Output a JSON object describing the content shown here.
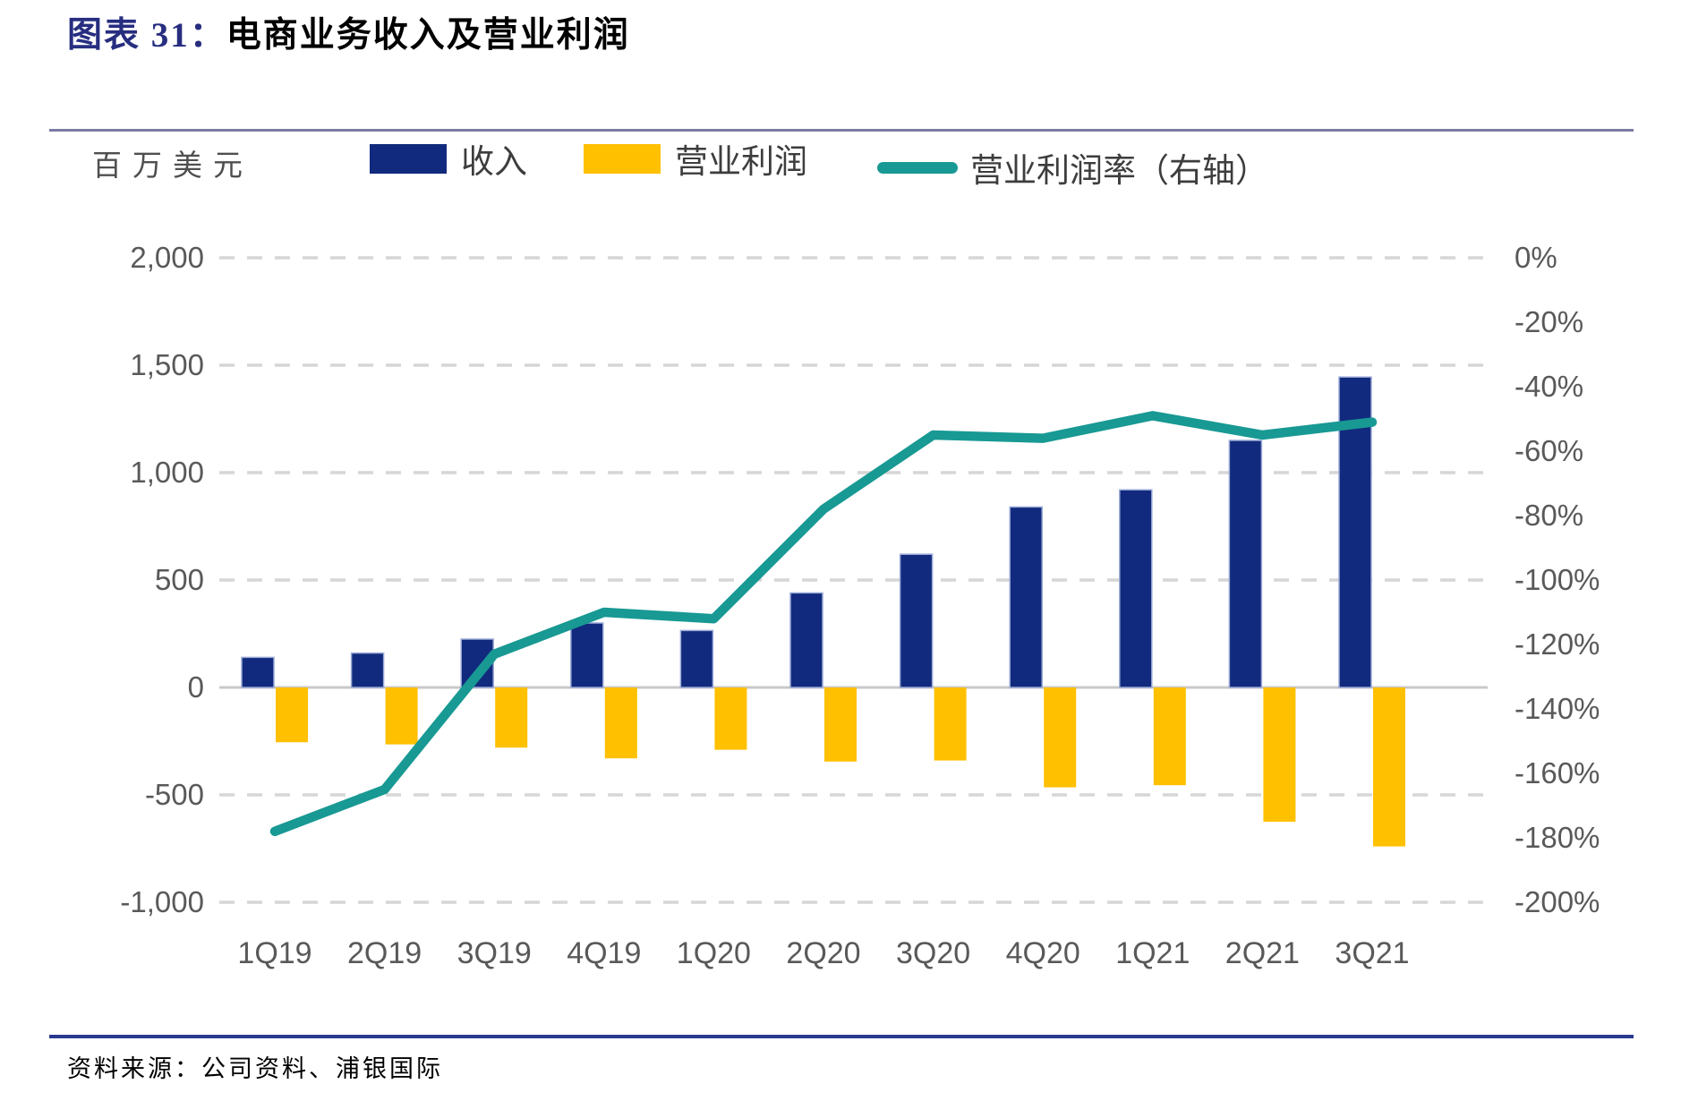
{
  "header": {
    "title_prefix": "图表 31：",
    "title_text": "电商业务收入及营业利润"
  },
  "unit_label": "百万美元",
  "legend": [
    {
      "label": "收入",
      "type": "bar",
      "color": "#112a7d"
    },
    {
      "label": "营业利润",
      "type": "bar",
      "color": "#ffc000"
    },
    {
      "label": "营业利润率（右轴）",
      "type": "line",
      "color": "#189993"
    }
  ],
  "footer": {
    "source_text": "资料来源：公司资料、浦银国际"
  },
  "colors": {
    "revenue_bar": "#112a7d",
    "revenue_bar_edge": "#9aa9d6",
    "profit_bar": "#ffc000",
    "margin_line": "#189993",
    "gridline": "#d6d6d6",
    "zero_line": "#c9c9c9",
    "axis_text": "#595959",
    "divider_top": "#7c7aa6",
    "divider_bottom": "#2b3990",
    "title_accent": "#272e80"
  },
  "chart_data": {
    "type": "bar+line",
    "categories": [
      "1Q19",
      "2Q19",
      "3Q19",
      "4Q19",
      "1Q20",
      "2Q20",
      "3Q20",
      "4Q20",
      "1Q21",
      "2Q21",
      "3Q21"
    ],
    "series": [
      {
        "name": "收入",
        "type": "bar",
        "axis": "left",
        "values": [
          140,
          160,
          225,
          300,
          265,
          440,
          620,
          840,
          920,
          1150,
          1445
        ]
      },
      {
        "name": "营业利润",
        "type": "bar",
        "axis": "left",
        "values": [
          -255,
          -265,
          -280,
          -330,
          -290,
          -345,
          -340,
          -465,
          -455,
          -625,
          -740
        ]
      },
      {
        "name": "营业利润率（右轴）",
        "type": "line",
        "axis": "right",
        "values": [
          -178,
          -165,
          -123,
          -110,
          -112,
          -78,
          -55,
          -56,
          -49,
          -55,
          -51
        ]
      }
    ],
    "title": "电商业务收入及营业利润",
    "ylabel_left": "百万美元",
    "ylabel_right": "%",
    "left_axis": {
      "min": -1000,
      "max": 2000,
      "step": 500,
      "tick_labels": [
        "2,000",
        "1,500",
        "1,000",
        "500",
        "0",
        "-500",
        "-1,000"
      ],
      "tick_values": [
        2000,
        1500,
        1000,
        500,
        0,
        -500,
        -1000
      ]
    },
    "right_axis": {
      "min": -200,
      "max": 0,
      "step": 20,
      "tick_labels": [
        "0%",
        "-20%",
        "-40%",
        "-60%",
        "-80%",
        "-100%",
        "-120%",
        "-140%",
        "-160%",
        "-180%",
        "-200%"
      ],
      "tick_values": [
        0,
        -20,
        -40,
        -60,
        -80,
        -100,
        -120,
        -140,
        -160,
        -180,
        -200
      ]
    },
    "grid": "horizontal-dashed",
    "legend_position": "top"
  }
}
